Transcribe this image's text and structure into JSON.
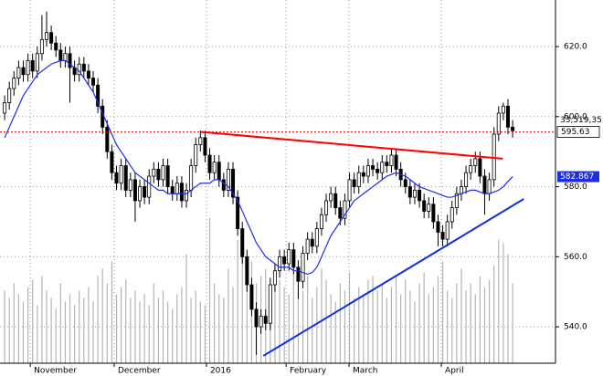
{
  "chart_data": {
    "type": "candlestick",
    "xlim": [
      -1,
      118.2
    ],
    "ylim": [
      529.6,
      633.3
    ],
    "y2lim": [
      0,
      100
    ],
    "grid": true,
    "xticks": [
      {
        "value": 5.5,
        "label": "November"
      },
      {
        "value": 23.5,
        "label": "December"
      },
      {
        "value": 43.3,
        "label": "2016"
      },
      {
        "value": 60.4,
        "label": "February"
      },
      {
        "value": 73.9,
        "label": "March"
      },
      {
        "value": 93.7,
        "label": "April"
      }
    ],
    "yticks": [
      {
        "value": 540,
        "label": "540.0"
      },
      {
        "value": 560,
        "label": "560.0"
      },
      {
        "value": 580,
        "label": "580.0"
      },
      {
        "value": 600,
        "label": "600.0"
      },
      {
        "value": 620,
        "label": "620.0"
      }
    ],
    "up_color": "#ffffff",
    "down_color": "#000000",
    "open": [
      601,
      604,
      608,
      611,
      614,
      612,
      616,
      613,
      618,
      622,
      624,
      621,
      619,
      616,
      618,
      614,
      612,
      615,
      613,
      611,
      609,
      603,
      597,
      590,
      584,
      581,
      586,
      579,
      582,
      576,
      580,
      577,
      583,
      585,
      582,
      586,
      580,
      578,
      581,
      576,
      579,
      586,
      592,
      594,
      589,
      584,
      587,
      582,
      579,
      585,
      577,
      568,
      560,
      552,
      545,
      540,
      543,
      541,
      552,
      556,
      560,
      558,
      562,
      557,
      553,
      561,
      565,
      563,
      568,
      572,
      576,
      578,
      574,
      571,
      576,
      582,
      580,
      584,
      583,
      586,
      585,
      584,
      587,
      586,
      589,
      585,
      582,
      580,
      577,
      579,
      576,
      573,
      575,
      570,
      567,
      565,
      570,
      574,
      578,
      580,
      584,
      586,
      588,
      583,
      578,
      582,
      595,
      601,
      603,
      597
    ],
    "high": [
      606,
      610,
      613,
      616,
      616,
      618,
      618,
      620,
      629,
      630,
      626,
      623,
      621,
      620,
      620,
      616,
      617,
      617,
      615,
      613,
      611,
      605,
      599,
      592,
      586,
      588,
      588,
      584,
      584,
      582,
      582,
      585,
      587,
      587,
      588,
      588,
      582,
      583,
      583,
      581,
      588,
      594,
      596,
      596,
      591,
      589,
      589,
      584,
      587,
      587,
      579,
      570,
      562,
      554,
      547,
      545,
      545,
      554,
      558,
      562,
      562,
      564,
      564,
      559,
      563,
      567,
      567,
      570,
      574,
      578,
      580,
      580,
      576,
      578,
      584,
      584,
      586,
      586,
      588,
      588,
      587,
      589,
      589,
      591,
      591,
      587,
      584,
      582,
      581,
      581,
      578,
      577,
      577,
      572,
      569,
      572,
      576,
      580,
      582,
      586,
      588,
      590,
      590,
      585,
      584,
      597,
      603,
      604,
      605,
      599
    ],
    "low": [
      599,
      602,
      606,
      609,
      610,
      610,
      611,
      611,
      616,
      620,
      619,
      617,
      614,
      614,
      604,
      610,
      610,
      611,
      609,
      607,
      601,
      595,
      588,
      582,
      579,
      579,
      577,
      577,
      570,
      574,
      575,
      575,
      581,
      580,
      580,
      578,
      576,
      576,
      574,
      574,
      577,
      584,
      590,
      587,
      582,
      582,
      580,
      577,
      577,
      575,
      566,
      558,
      550,
      543,
      532,
      538,
      539,
      539,
      550,
      554,
      556,
      556,
      555,
      548,
      551,
      559,
      561,
      561,
      566,
      570,
      574,
      572,
      569,
      569,
      574,
      578,
      578,
      581,
      581,
      583,
      582,
      582,
      584,
      584,
      583,
      580,
      578,
      575,
      575,
      574,
      571,
      571,
      568,
      563,
      563,
      563,
      568,
      572,
      576,
      578,
      582,
      584,
      581,
      572,
      576,
      580,
      593,
      599,
      595,
      594
    ],
    "close": [
      604,
      608,
      611,
      614,
      612,
      616,
      613,
      618,
      622,
      624,
      621,
      619,
      616,
      618,
      614,
      612,
      615,
      613,
      611,
      609,
      603,
      597,
      590,
      584,
      581,
      586,
      579,
      582,
      576,
      580,
      577,
      583,
      585,
      582,
      586,
      580,
      578,
      581,
      576,
      579,
      586,
      592,
      594,
      589,
      584,
      587,
      582,
      579,
      585,
      577,
      568,
      560,
      552,
      545,
      540,
      543,
      541,
      552,
      556,
      560,
      558,
      562,
      557,
      553,
      561,
      565,
      563,
      568,
      572,
      576,
      578,
      574,
      571,
      576,
      582,
      580,
      584,
      583,
      586,
      585,
      584,
      587,
      586,
      589,
      585,
      582,
      580,
      577,
      579,
      576,
      573,
      575,
      570,
      567,
      565,
      570,
      574,
      578,
      580,
      584,
      586,
      588,
      583,
      578,
      582,
      595,
      601,
      603,
      597,
      596
    ],
    "ma": {
      "color": "#1f2fe0",
      "values": [
        594,
        597,
        600,
        603,
        606,
        608,
        610,
        612,
        613,
        614,
        615,
        615.5,
        616,
        616,
        615,
        614,
        613,
        611,
        609,
        607,
        604,
        601,
        598,
        595,
        592,
        590,
        588,
        586,
        584,
        583,
        582,
        581,
        580,
        579,
        579,
        578,
        578,
        578,
        578,
        578,
        579,
        580,
        581,
        581,
        581,
        582,
        582,
        581,
        580,
        578,
        576,
        573,
        570,
        567,
        564,
        562,
        560,
        559,
        558,
        557,
        557,
        557,
        556,
        556,
        555.5,
        555,
        555.5,
        557,
        560,
        563,
        566,
        568,
        570,
        572,
        574,
        576,
        577,
        578,
        579,
        580,
        581,
        582,
        583,
        583.5,
        584,
        583.5,
        583,
        582,
        581,
        580,
        579.5,
        579,
        578.5,
        578,
        577.5,
        577,
        577,
        577.5,
        578,
        578.5,
        579,
        579,
        578.5,
        578,
        578,
        578.5,
        579,
        580,
        581.5,
        582.867
      ]
    },
    "volume": {
      "color": "#b4b4b4",
      "axis": "y2",
      "values": [
        20,
        18,
        22,
        19,
        17,
        21,
        23,
        16,
        24,
        20,
        18,
        15,
        22,
        17,
        19,
        16,
        20,
        18,
        21,
        17,
        24,
        26,
        22,
        28,
        19,
        21,
        23,
        18,
        20,
        17,
        19,
        16,
        22,
        18,
        20,
        17,
        15,
        19,
        21,
        30,
        18,
        20,
        17,
        16,
        40,
        22,
        19,
        18,
        26,
        21,
        34,
        30,
        25,
        28,
        22,
        24,
        26,
        20,
        27,
        23,
        21,
        19,
        25,
        22,
        20,
        24,
        18,
        21,
        26,
        23,
        19,
        17,
        22,
        20,
        25,
        18,
        21,
        19,
        23,
        24,
        20,
        22,
        18,
        21,
        24,
        19,
        23,
        20,
        17,
        22,
        25,
        19,
        21,
        24,
        28,
        20,
        18,
        22,
        26,
        20,
        22,
        19,
        24,
        21,
        23,
        27,
        34,
        33,
        30,
        22
      ]
    },
    "trendlines": [
      {
        "color": "#ff0000",
        "x": [
          42.2,
          106.9
        ],
        "y": [
          595.63,
          588
        ]
      },
      {
        "color": "#1030d8",
        "x": [
          55.5,
          111.4
        ],
        "y": [
          531.7,
          576.5
        ]
      }
    ],
    "reference_color": "#e00000",
    "annotations": {
      "volume_text": "33,519,35",
      "last_price": 595.63
    }
  }
}
